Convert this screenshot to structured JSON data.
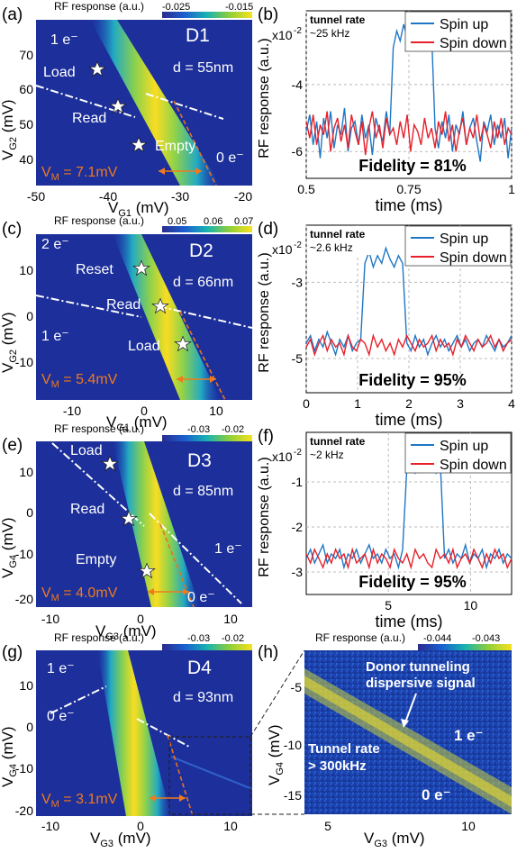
{
  "panels": [
    {
      "id": "a",
      "panel_label": "(a)",
      "device": "D1",
      "distance": "d = 55nm",
      "cbar_title": "RF response (a.u.)",
      "cbar_ticks": [
        "-0.025",
        "-0.015"
      ],
      "xlabel": "V",
      "xlabel_sub": "G1",
      "xlabel_unit": " (mV)",
      "ylabel": "V",
      "ylabel_sub": "G2",
      "ylabel_unit": " (mV)",
      "xticks": [
        "-50",
        "-40",
        "-30",
        "-20"
      ],
      "yticks": [
        "70",
        "60",
        "50",
        "40"
      ],
      "charge_labels": [
        "1 e⁻",
        "0 e⁻"
      ],
      "star_labels": [
        "Load",
        "Read",
        "Empty"
      ],
      "vm": "V",
      "vm_sub": "M",
      "vm_value": " = 7.1mV"
    },
    {
      "id": "c",
      "panel_label": "(c)",
      "device": "D2",
      "distance": "d = 66nm",
      "cbar_title": "RF response (a.u.)",
      "cbar_ticks": [
        "0.05",
        "0.06",
        "0.07"
      ],
      "xlabel": "V",
      "xlabel_sub": "G1",
      "xlabel_unit": " (mV)",
      "ylabel": "V",
      "ylabel_sub": "G2",
      "ylabel_unit": " (mV)",
      "xticks": [
        "-10",
        "0",
        "10"
      ],
      "yticks": [
        "10",
        "0",
        "-10"
      ],
      "charge_labels": [
        "2 e⁻",
        "1 e⁻"
      ],
      "star_labels": [
        "Reset",
        "Read",
        "Load"
      ],
      "vm": "V",
      "vm_sub": "M",
      "vm_value": " = 5.4mV"
    },
    {
      "id": "e",
      "panel_label": "(e)",
      "device": "D3",
      "distance": "d = 85nm",
      "cbar_title": "RF response (a.u.)",
      "cbar_ticks": [
        "-0.03",
        "-0.02"
      ],
      "xlabel": "V",
      "xlabel_sub": "G3",
      "xlabel_unit": " (mV)",
      "ylabel": "V",
      "ylabel_sub": "G4",
      "ylabel_unit": " (mV)",
      "xticks": [
        "-10",
        "0",
        "10"
      ],
      "yticks": [
        "10",
        "0",
        "-10",
        "-20"
      ],
      "charge_labels": [
        "1 e⁻",
        "0 e⁻"
      ],
      "star_labels": [
        "Load",
        "Read",
        "Empty"
      ],
      "vm": "V",
      "vm_sub": "M",
      "vm_value": " = 4.0mV"
    },
    {
      "id": "g",
      "panel_label": "(g)",
      "device": "D4",
      "distance": "d = 93nm",
      "cbar_title": "RF response (a.u.)",
      "cbar_ticks": [
        "-0.03",
        "-0.02"
      ],
      "xlabel": "V",
      "xlabel_sub": "G3",
      "xlabel_unit": " (mV)",
      "ylabel": "V",
      "ylabel_sub": "G4",
      "ylabel_unit": " (mV)",
      "xticks": [
        "-10",
        "0",
        "10"
      ],
      "yticks": [
        "10",
        "0",
        "-10",
        "-20"
      ],
      "charge_labels": [
        "1 e⁻",
        "0 e⁻"
      ],
      "vm": "V",
      "vm_sub": "M",
      "vm_value": " = 3.1mV"
    },
    {
      "id": "h",
      "panel_label": "(h)",
      "cbar_title": "RF response (a.u.)",
      "cbar_ticks": [
        "-0.044",
        "-0.043"
      ],
      "xlabel": "V",
      "xlabel_sub": "G3",
      "xlabel_unit": " (mV)",
      "ylabel": "V",
      "ylabel_sub": "G4",
      "ylabel_unit": " (mV)",
      "xticks": [
        "5",
        "10"
      ],
      "yticks": [
        "-5",
        "-10",
        "-15"
      ],
      "annotation": [
        "Donor tunneling",
        "dispersive signal"
      ],
      "tunnel_rate": [
        "Tunnel rate",
        "> 300kHz"
      ],
      "charge_labels": [
        "1 e⁻",
        "0 e⁻"
      ]
    }
  ],
  "chart_data": [
    {
      "id": "b",
      "type": "line",
      "panel_label": "(b)",
      "xlabel": "time (ms)",
      "ylabel": "RF response (a.u.)",
      "xlim": [
        0.5,
        1.0
      ],
      "ylim": [
        -6.8,
        -1.8
      ],
      "xticks": [
        "0.5",
        "0.75",
        "1"
      ],
      "yticks": [
        "-4",
        "-6"
      ],
      "y_multiplier": "x10",
      "y_multiplier_exp": "-2",
      "tunnel_rate": [
        "tunnel rate",
        "~25 kHz"
      ],
      "fidelity": "Fidelity = 81%",
      "legend": [
        "Spin up",
        "Spin down"
      ],
      "colors": [
        "#1f77c4",
        "#e8202a"
      ],
      "base": -5.3,
      "noise": 0.45,
      "pulse": [
        0.62,
        0.71,
        -2.6
      ],
      "series": [
        {
          "name": "Spin up",
          "values": [
            -5.4,
            -4.9,
            -5.8,
            -5.1,
            -6.2,
            -5.0,
            -5.6,
            -4.8,
            -5.9,
            -5.2,
            -5.5,
            -4.7,
            -6.0,
            -5.3,
            -5.1,
            -5.8,
            -4.9,
            -5.6,
            -5.2,
            -6.1,
            -5.0,
            -5.4,
            -5.7,
            -4.8,
            -5.5,
            -2.9,
            -2.4,
            -2.7,
            -2.2,
            -2.6,
            -2.1,
            -2.8,
            -2.3,
            -2.5,
            -2.0,
            -2.7,
            -2.4,
            -5.3,
            -5.9,
            -5.1,
            -5.6,
            -4.9,
            -6.0,
            -5.2,
            -5.5,
            -4.8,
            -5.8,
            -5.3,
            -5.0,
            -5.7,
            -6.3,
            -5.1,
            -5.4,
            -4.9,
            -5.8,
            -5.2,
            -5.6,
            -5.0,
            -6.2,
            -5.3
          ]
        },
        {
          "name": "Spin down",
          "values": [
            -5.1,
            -5.6,
            -4.9,
            -5.8,
            -5.2,
            -5.5,
            -4.8,
            -6.0,
            -5.3,
            -5.0,
            -5.7,
            -5.2,
            -5.9,
            -4.9,
            -5.4,
            -5.8,
            -5.1,
            -6.1,
            -5.3,
            -4.8,
            -5.6,
            -5.2,
            -5.9,
            -5.0,
            -5.5,
            -5.3,
            -5.8,
            -5.1,
            -5.6,
            -4.9,
            -6.0,
            -5.2,
            -5.4,
            -5.8,
            -5.0,
            -5.6,
            -5.3,
            -5.9,
            -5.1,
            -5.5,
            -4.8,
            -5.7,
            -5.2,
            -6.0,
            -5.4,
            -5.0,
            -5.8,
            -5.3,
            -5.6,
            -4.9,
            -5.7,
            -5.2,
            -5.5,
            -5.9,
            -5.1,
            -5.6,
            -5.0,
            -5.8,
            -5.3,
            -5.5
          ]
        }
      ]
    },
    {
      "id": "d",
      "type": "line",
      "panel_label": "(d)",
      "xlabel": "time (ms)",
      "ylabel": "RF response (a.u.)",
      "xlim": [
        0,
        4
      ],
      "ylim": [
        -5.9,
        -1.5
      ],
      "xticks": [
        "0",
        "1",
        "2",
        "3",
        "4"
      ],
      "yticks": [
        "-3",
        "-5"
      ],
      "y_multiplier": "x10",
      "y_multiplier_exp": "-2",
      "tunnel_rate": [
        "tunnel rate",
        "~2.6 kHz"
      ],
      "fidelity": "Fidelity = 95%",
      "legend": [
        "Spin up",
        "Spin down"
      ],
      "colors": [
        "#1f77c4",
        "#e8202a"
      ],
      "base": -4.6,
      "noise": 0.28,
      "pulse": [
        1.15,
        1.85,
        -2.4
      ],
      "series": [
        {
          "name": "Spin up",
          "values": [
            -4.6,
            -4.4,
            -4.8,
            -4.5,
            -4.7,
            -4.3,
            -4.6,
            -4.9,
            -4.5,
            -4.7,
            -4.4,
            -4.8,
            -4.6,
            -4.5,
            -2.5,
            -2.2,
            -2.6,
            -2.3,
            -2.5,
            -2.1,
            -2.4,
            -2.6,
            -2.3,
            -2.5,
            -4.6,
            -4.8,
            -4.4,
            -4.7,
            -4.5,
            -4.9,
            -4.6,
            -4.4,
            -4.7,
            -4.5,
            -4.8,
            -4.6,
            -4.4,
            -4.7,
            -4.5,
            -4.8,
            -4.6,
            -4.5,
            -4.7,
            -4.4,
            -4.6,
            -4.8,
            -4.5,
            -4.7,
            -4.6,
            -4.4
          ]
        },
        {
          "name": "Spin down",
          "values": [
            -4.7,
            -4.5,
            -4.9,
            -4.6,
            -4.4,
            -4.8,
            -4.5,
            -4.7,
            -4.6,
            -4.9,
            -4.4,
            -4.7,
            -4.8,
            -4.5,
            -4.6,
            -4.9,
            -4.4,
            -4.7,
            -4.5,
            -4.8,
            -4.6,
            -4.9,
            -4.5,
            -4.7,
            -4.4,
            -4.6,
            -4.8,
            -4.5,
            -4.7,
            -4.6,
            -4.4,
            -4.8,
            -4.5,
            -4.7,
            -4.6,
            -4.9,
            -4.5,
            -4.7,
            -4.4,
            -4.6,
            -4.8,
            -4.5,
            -4.7,
            -4.6,
            -4.4,
            -4.7,
            -4.5,
            -4.8,
            -4.6,
            -4.5
          ]
        }
      ]
    },
    {
      "id": "f",
      "type": "line",
      "panel_label": "(f)",
      "xlabel": "time (ms)",
      "ylabel": "RF response (a.u.)",
      "xlim": [
        0,
        12.5
      ],
      "ylim": [
        -3.5,
        0.1
      ],
      "xticks": [
        "5",
        "10"
      ],
      "yticks": [
        "-1",
        "-2",
        "-3"
      ],
      "y_multiplier": "x10",
      "y_multiplier_exp": "-2",
      "tunnel_rate": [
        "tunnel rate",
        "~2 kHz"
      ],
      "fidelity": "Fidelity = 95%",
      "legend": [
        "Spin up",
        "Spin down"
      ],
      "colors": [
        "#1f77c4",
        "#e8202a"
      ],
      "base": -2.65,
      "noise": 0.25,
      "pulse": [
        5.9,
        8.0,
        -0.6
      ],
      "series": [
        {
          "name": "Spin up",
          "values": [
            -2.7,
            -2.5,
            -2.8,
            -2.6,
            -2.4,
            -2.8,
            -2.6,
            -2.7,
            -2.5,
            -2.9,
            -2.6,
            -2.7,
            -2.5,
            -2.8,
            -2.6,
            -2.4,
            -2.7,
            -2.6,
            -2.8,
            -2.5,
            -2.7,
            -2.6,
            -2.9,
            -2.5,
            -0.7,
            -0.5,
            -0.8,
            -0.6,
            -0.4,
            -0.7,
            -0.5,
            -0.8,
            -0.6,
            -2.7,
            -2.5,
            -2.8,
            -2.6,
            -2.7,
            -2.4,
            -2.8,
            -2.6,
            -2.7,
            -2.5,
            -2.9,
            -2.6,
            -2.7,
            -2.5,
            -2.8,
            -2.6,
            -2.7
          ]
        },
        {
          "name": "Spin down",
          "values": [
            -2.6,
            -2.8,
            -2.5,
            -2.7,
            -2.9,
            -2.6,
            -2.8,
            -2.5,
            -2.7,
            -2.6,
            -2.9,
            -2.5,
            -2.8,
            -2.7,
            -2.6,
            -2.9,
            -2.5,
            -2.8,
            -2.6,
            -2.7,
            -2.9,
            -2.5,
            -2.7,
            -2.8,
            -2.6,
            -2.9,
            -2.5,
            -2.7,
            -2.6,
            -2.8,
            -2.9,
            -2.5,
            -2.7,
            -2.6,
            -2.8,
            -2.5,
            -2.9,
            -2.7,
            -2.6,
            -2.8,
            -2.5,
            -2.7,
            -2.9,
            -2.6,
            -2.8,
            -2.5,
            -2.7,
            -2.6,
            -2.9,
            -2.7
          ]
        }
      ]
    }
  ]
}
